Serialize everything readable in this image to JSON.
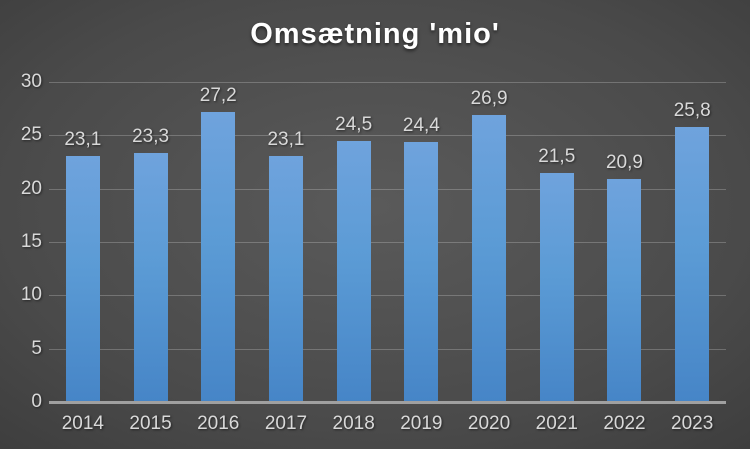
{
  "chart_data": {
    "type": "bar",
    "title": "Omsætning 'mio'",
    "categories": [
      "2014",
      "2015",
      "2016",
      "2017",
      "2018",
      "2019",
      "2020",
      "2021",
      "2022",
      "2023"
    ],
    "values": [
      23.1,
      23.3,
      27.2,
      23.1,
      24.5,
      24.4,
      26.9,
      21.5,
      20.9,
      25.8
    ],
    "value_labels": [
      "23,1",
      "23,3",
      "27,2",
      "23,1",
      "24,5",
      "24,4",
      "26,9",
      "21,5",
      "20,9",
      "25,8"
    ],
    "xlabel": "",
    "ylabel": "",
    "ylim": [
      0,
      30
    ],
    "yticks": [
      0,
      5,
      10,
      15,
      20,
      25,
      30
    ],
    "grid": true,
    "legend": false,
    "decimal_separator": ","
  },
  "colors": {
    "bar_fill": "#5b9bd5",
    "bar_fill_top": "#6fa3dd",
    "bar_fill_bottom": "#4685c7",
    "axis_line": "#a0a0a0",
    "gridline": "rgba(255,255,255,0.22)",
    "tick_text": "#d9d9d9",
    "title_text": "#ffffff",
    "background_center": "#5a5a5a",
    "background_edge": "#232323"
  }
}
